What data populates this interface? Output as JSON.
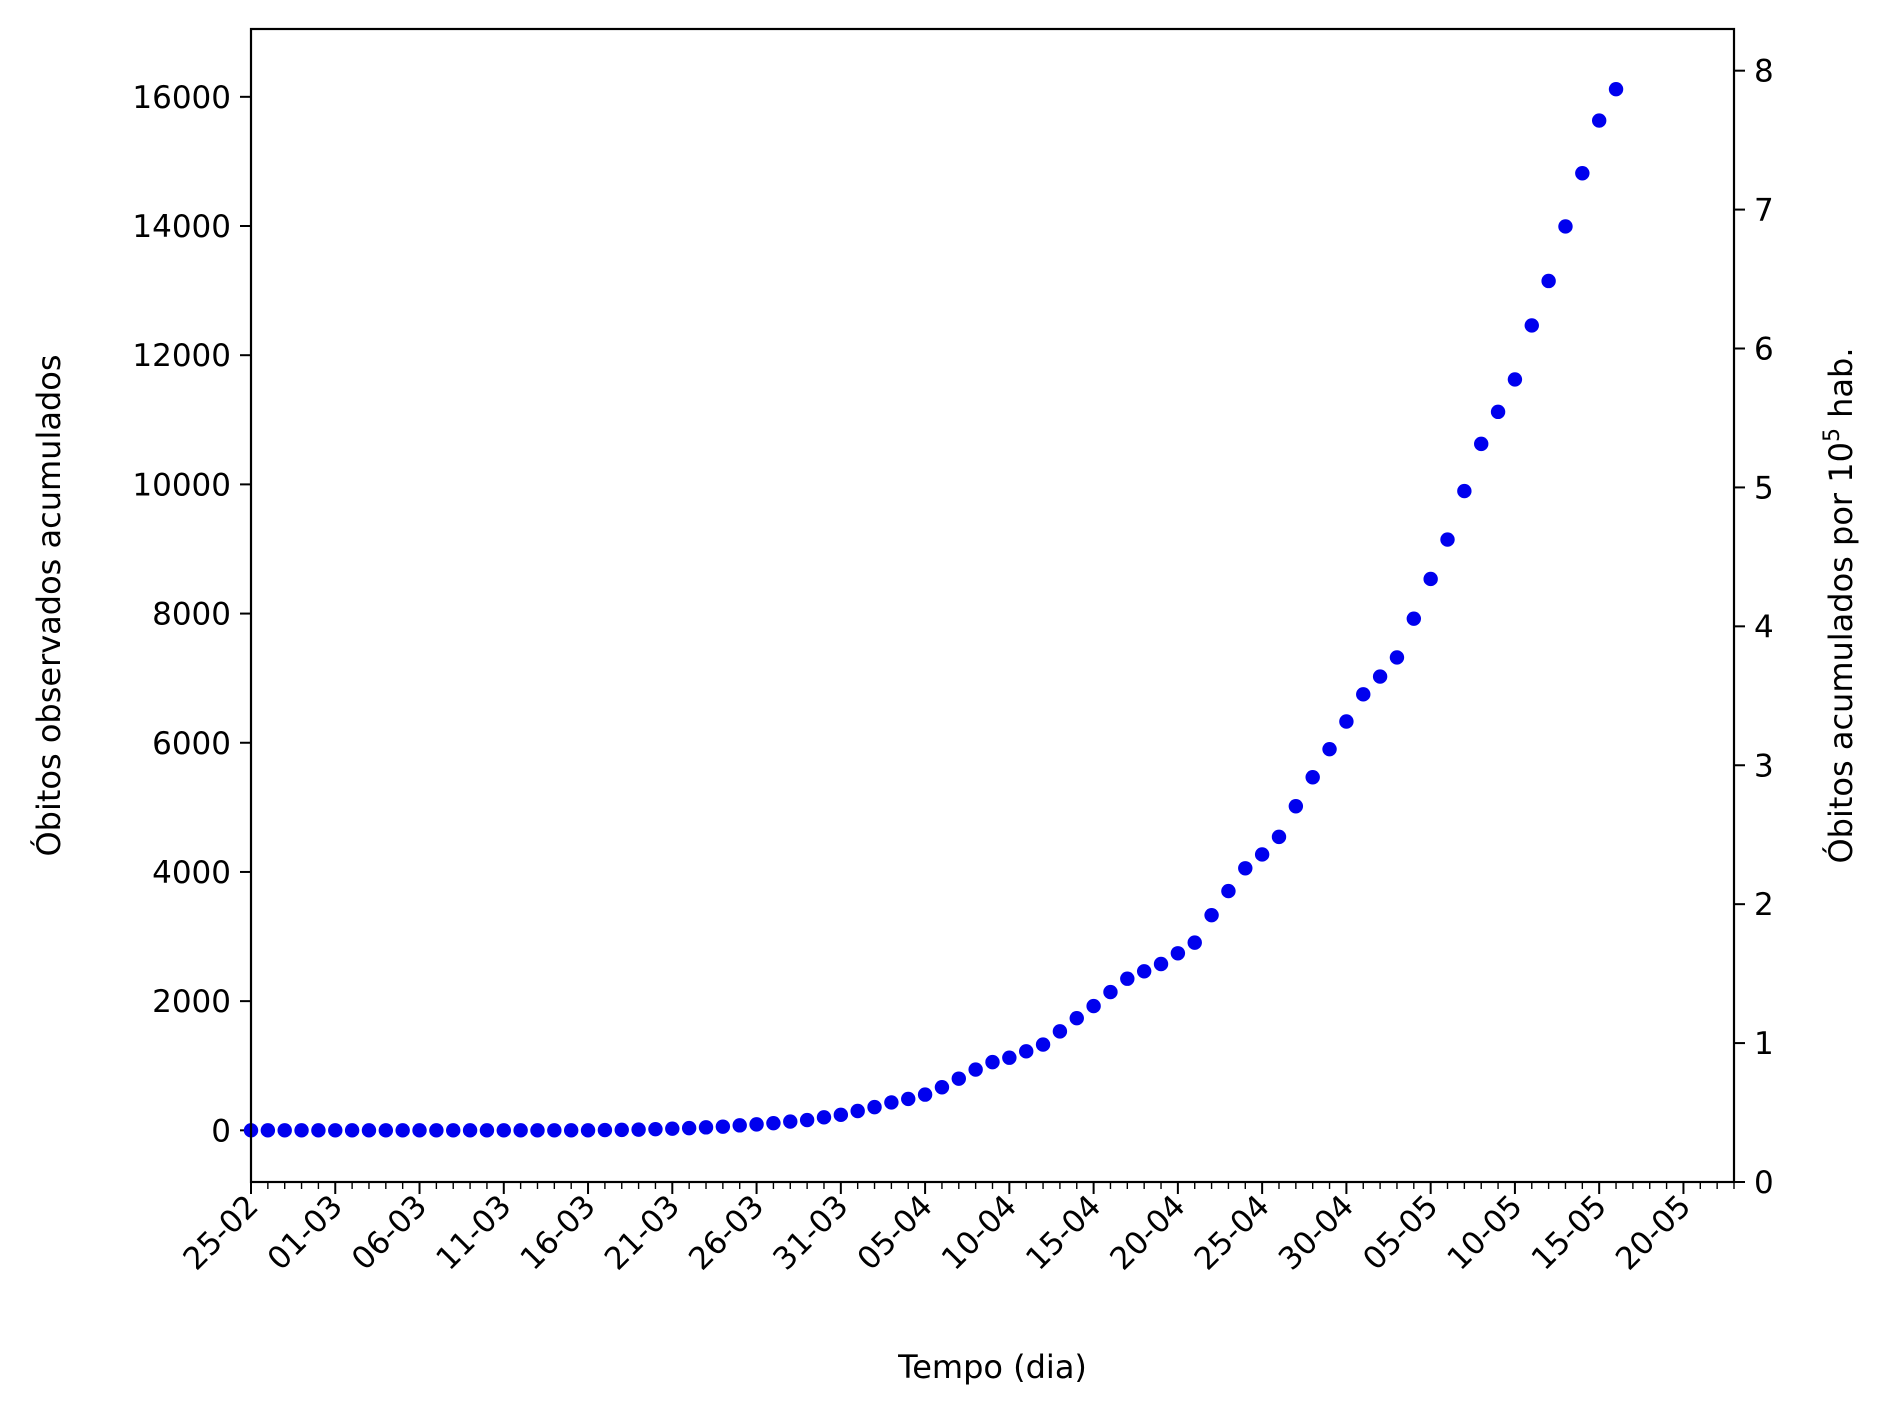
{
  "chart_data": {
    "type": "scatter",
    "title": "",
    "xlabel": "Tempo (dia)",
    "ylabel_left": "Óbitos observados acumulados",
    "ylabel_right": {
      "prefix": "Óbitos acumulados por 10",
      "superscript": "5",
      "suffix": " hab."
    },
    "x_start_date": "25-02",
    "x_tick_labels": [
      "25-02",
      "01-03",
      "06-03",
      "11-03",
      "16-03",
      "21-03",
      "26-03",
      "31-03",
      "05-04",
      "10-04",
      "15-04",
      "20-04",
      "25-04",
      "30-04",
      "05-05",
      "10-05",
      "15-05",
      "20-05"
    ],
    "x_tick_step_days": 5,
    "xlim_days": [
      0,
      88
    ],
    "ylim_left": [
      -800,
      17050
    ],
    "yticks_left": [
      0,
      2000,
      4000,
      6000,
      8000,
      10000,
      12000,
      14000,
      16000
    ],
    "ylim_right": [
      0,
      8.3
    ],
    "yticks_right": [
      0,
      1,
      2,
      3,
      4,
      5,
      6,
      7,
      8
    ],
    "grid": false,
    "marker_color": "#0000ee",
    "series": [
      {
        "values": [
          0,
          0,
          0,
          0,
          0,
          0,
          0,
          0,
          0,
          0,
          0,
          0,
          0,
          0,
          0,
          0,
          0,
          0,
          0,
          0,
          0,
          4,
          7,
          11,
          18,
          25,
          34,
          46,
          57,
          77,
          92,
          111,
          136,
          159,
          201,
          240,
          299,
          359,
          432,
          486,
          553,
          667,
          800,
          941,
          1056,
          1124,
          1223,
          1328,
          1532,
          1736,
          1924,
          2141,
          2347,
          2462,
          2575,
          2741,
          2906,
          3331,
          3704,
          4057,
          4271,
          4543,
          5017,
          5466,
          5901,
          6329,
          6750,
          7025,
          7321,
          7921,
          8536,
          9146,
          9897,
          10627,
          11123,
          11625,
          12461,
          13149,
          13993,
          14817,
          15633,
          16118
        ]
      }
    ]
  }
}
